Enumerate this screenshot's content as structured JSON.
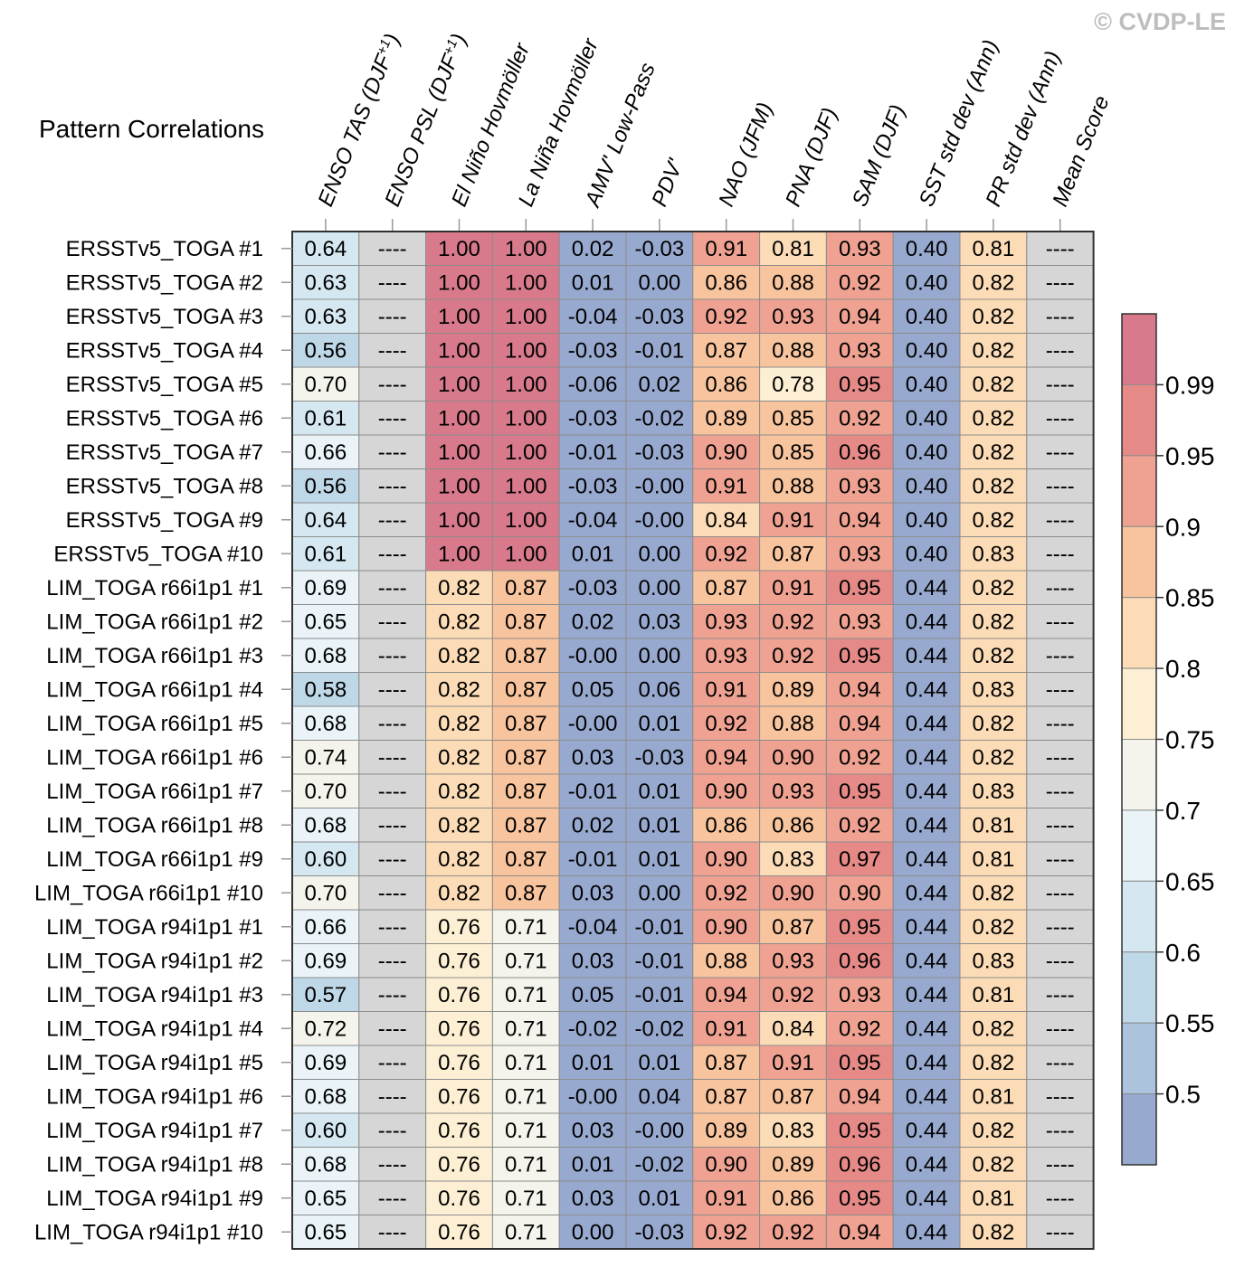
{
  "watermark": "© CVDP-LE",
  "chart_data": {
    "type": "heatmap",
    "title": "Pattern Correlations",
    "columns": [
      {
        "label": "ENSO TAS (DJF",
        "sup": "+1",
        "suffix": ")"
      },
      {
        "label": "ENSO PSL (DJF",
        "sup": "+1",
        "suffix": ")"
      },
      {
        "label": "El Niño Hovmöller",
        "sup": "",
        "suffix": ""
      },
      {
        "label": "La Niña Hovmöller",
        "sup": "",
        "suffix": ""
      },
      {
        "label": "AMV' Low-Pass",
        "sup": "",
        "suffix": ""
      },
      {
        "label": "PDV'",
        "sup": "",
        "suffix": ""
      },
      {
        "label": "NAO (JFM)",
        "sup": "",
        "suffix": ""
      },
      {
        "label": "PNA (DJF)",
        "sup": "",
        "suffix": ""
      },
      {
        "label": "SAM (DJF)",
        "sup": "",
        "suffix": ""
      },
      {
        "label": "SST std dev (Ann)",
        "sup": "",
        "suffix": ""
      },
      {
        "label": "PR std dev (Ann)",
        "sup": "",
        "suffix": ""
      },
      {
        "label": "Mean Score",
        "sup": "",
        "suffix": ""
      }
    ],
    "rows": [
      {
        "name": "ERSSTv5_TOGA #1",
        "values": [
          "0.64",
          "----",
          "1.00",
          "1.00",
          "0.02",
          "-0.03",
          "0.91",
          "0.81",
          "0.93",
          "0.40",
          "0.81",
          "----"
        ]
      },
      {
        "name": "ERSSTv5_TOGA #2",
        "values": [
          "0.63",
          "----",
          "1.00",
          "1.00",
          "0.01",
          "0.00",
          "0.86",
          "0.88",
          "0.92",
          "0.40",
          "0.82",
          "----"
        ]
      },
      {
        "name": "ERSSTv5_TOGA #3",
        "values": [
          "0.63",
          "----",
          "1.00",
          "1.00",
          "-0.04",
          "-0.03",
          "0.92",
          "0.93",
          "0.94",
          "0.40",
          "0.82",
          "----"
        ]
      },
      {
        "name": "ERSSTv5_TOGA #4",
        "values": [
          "0.56",
          "----",
          "1.00",
          "1.00",
          "-0.03",
          "-0.01",
          "0.87",
          "0.88",
          "0.93",
          "0.40",
          "0.82",
          "----"
        ]
      },
      {
        "name": "ERSSTv5_TOGA #5",
        "values": [
          "0.70",
          "----",
          "1.00",
          "1.00",
          "-0.06",
          "0.02",
          "0.86",
          "0.78",
          "0.95",
          "0.40",
          "0.82",
          "----"
        ]
      },
      {
        "name": "ERSSTv5_TOGA #6",
        "values": [
          "0.61",
          "----",
          "1.00",
          "1.00",
          "-0.03",
          "-0.02",
          "0.89",
          "0.85",
          "0.92",
          "0.40",
          "0.82",
          "----"
        ]
      },
      {
        "name": "ERSSTv5_TOGA #7",
        "values": [
          "0.66",
          "----",
          "1.00",
          "1.00",
          "-0.01",
          "-0.03",
          "0.90",
          "0.85",
          "0.96",
          "0.40",
          "0.82",
          "----"
        ]
      },
      {
        "name": "ERSSTv5_TOGA #8",
        "values": [
          "0.56",
          "----",
          "1.00",
          "1.00",
          "-0.03",
          "-0.00",
          "0.91",
          "0.88",
          "0.93",
          "0.40",
          "0.82",
          "----"
        ]
      },
      {
        "name": "ERSSTv5_TOGA #9",
        "values": [
          "0.64",
          "----",
          "1.00",
          "1.00",
          "-0.04",
          "-0.00",
          "0.84",
          "0.91",
          "0.94",
          "0.40",
          "0.82",
          "----"
        ]
      },
      {
        "name": "ERSSTv5_TOGA #10",
        "values": [
          "0.61",
          "----",
          "1.00",
          "1.00",
          "0.01",
          "0.00",
          "0.92",
          "0.87",
          "0.93",
          "0.40",
          "0.83",
          "----"
        ]
      },
      {
        "name": "LIM_TOGA r66i1p1 #1",
        "values": [
          "0.69",
          "----",
          "0.82",
          "0.87",
          "-0.03",
          "0.00",
          "0.87",
          "0.91",
          "0.95",
          "0.44",
          "0.82",
          "----"
        ]
      },
      {
        "name": "LIM_TOGA r66i1p1 #2",
        "values": [
          "0.65",
          "----",
          "0.82",
          "0.87",
          "0.02",
          "0.03",
          "0.93",
          "0.92",
          "0.93",
          "0.44",
          "0.82",
          "----"
        ]
      },
      {
        "name": "LIM_TOGA r66i1p1 #3",
        "values": [
          "0.68",
          "----",
          "0.82",
          "0.87",
          "-0.00",
          "0.00",
          "0.93",
          "0.92",
          "0.95",
          "0.44",
          "0.82",
          "----"
        ]
      },
      {
        "name": "LIM_TOGA r66i1p1 #4",
        "values": [
          "0.58",
          "----",
          "0.82",
          "0.87",
          "0.05",
          "0.06",
          "0.91",
          "0.89",
          "0.94",
          "0.44",
          "0.83",
          "----"
        ]
      },
      {
        "name": "LIM_TOGA r66i1p1 #5",
        "values": [
          "0.68",
          "----",
          "0.82",
          "0.87",
          "-0.00",
          "0.01",
          "0.92",
          "0.88",
          "0.94",
          "0.44",
          "0.82",
          "----"
        ]
      },
      {
        "name": "LIM_TOGA r66i1p1 #6",
        "values": [
          "0.74",
          "----",
          "0.82",
          "0.87",
          "0.03",
          "-0.03",
          "0.94",
          "0.90",
          "0.92",
          "0.44",
          "0.82",
          "----"
        ]
      },
      {
        "name": "LIM_TOGA r66i1p1 #7",
        "values": [
          "0.70",
          "----",
          "0.82",
          "0.87",
          "-0.01",
          "0.01",
          "0.90",
          "0.93",
          "0.95",
          "0.44",
          "0.83",
          "----"
        ]
      },
      {
        "name": "LIM_TOGA r66i1p1 #8",
        "values": [
          "0.68",
          "----",
          "0.82",
          "0.87",
          "0.02",
          "0.01",
          "0.86",
          "0.86",
          "0.92",
          "0.44",
          "0.81",
          "----"
        ]
      },
      {
        "name": "LIM_TOGA r66i1p1 #9",
        "values": [
          "0.60",
          "----",
          "0.82",
          "0.87",
          "-0.01",
          "0.01",
          "0.90",
          "0.83",
          "0.97",
          "0.44",
          "0.81",
          "----"
        ]
      },
      {
        "name": "LIM_TOGA r66i1p1 #10",
        "values": [
          "0.70",
          "----",
          "0.82",
          "0.87",
          "0.03",
          "0.00",
          "0.92",
          "0.90",
          "0.90",
          "0.44",
          "0.82",
          "----"
        ]
      },
      {
        "name": "LIM_TOGA r94i1p1 #1",
        "values": [
          "0.66",
          "----",
          "0.76",
          "0.71",
          "-0.04",
          "-0.01",
          "0.90",
          "0.87",
          "0.95",
          "0.44",
          "0.82",
          "----"
        ]
      },
      {
        "name": "LIM_TOGA r94i1p1 #2",
        "values": [
          "0.69",
          "----",
          "0.76",
          "0.71",
          "0.03",
          "-0.01",
          "0.88",
          "0.93",
          "0.96",
          "0.44",
          "0.83",
          "----"
        ]
      },
      {
        "name": "LIM_TOGA r94i1p1 #3",
        "values": [
          "0.57",
          "----",
          "0.76",
          "0.71",
          "0.05",
          "-0.01",
          "0.94",
          "0.92",
          "0.93",
          "0.44",
          "0.81",
          "----"
        ]
      },
      {
        "name": "LIM_TOGA r94i1p1 #4",
        "values": [
          "0.72",
          "----",
          "0.76",
          "0.71",
          "-0.02",
          "-0.02",
          "0.91",
          "0.84",
          "0.92",
          "0.44",
          "0.82",
          "----"
        ]
      },
      {
        "name": "LIM_TOGA r94i1p1 #5",
        "values": [
          "0.69",
          "----",
          "0.76",
          "0.71",
          "0.01",
          "0.01",
          "0.87",
          "0.91",
          "0.95",
          "0.44",
          "0.82",
          "----"
        ]
      },
      {
        "name": "LIM_TOGA r94i1p1 #6",
        "values": [
          "0.68",
          "----",
          "0.76",
          "0.71",
          "-0.00",
          "0.04",
          "0.87",
          "0.87",
          "0.94",
          "0.44",
          "0.81",
          "----"
        ]
      },
      {
        "name": "LIM_TOGA r94i1p1 #7",
        "values": [
          "0.60",
          "----",
          "0.76",
          "0.71",
          "0.03",
          "-0.00",
          "0.89",
          "0.83",
          "0.95",
          "0.44",
          "0.82",
          "----"
        ]
      },
      {
        "name": "LIM_TOGA r94i1p1 #8",
        "values": [
          "0.68",
          "----",
          "0.76",
          "0.71",
          "0.01",
          "-0.02",
          "0.90",
          "0.89",
          "0.96",
          "0.44",
          "0.82",
          "----"
        ]
      },
      {
        "name": "LIM_TOGA r94i1p1 #9",
        "values": [
          "0.65",
          "----",
          "0.76",
          "0.71",
          "0.03",
          "0.01",
          "0.91",
          "0.86",
          "0.95",
          "0.44",
          "0.81",
          "----"
        ]
      },
      {
        "name": "LIM_TOGA r94i1p1 #10",
        "values": [
          "0.65",
          "----",
          "0.76",
          "0.71",
          "0.00",
          "-0.03",
          "0.92",
          "0.92",
          "0.94",
          "0.44",
          "0.82",
          "----"
        ]
      }
    ],
    "colorbar": {
      "ticks": [
        "0.99",
        "0.95",
        "0.9",
        "0.85",
        "0.8",
        "0.75",
        "0.7",
        "0.65",
        "0.6",
        "0.55",
        "0.5"
      ],
      "thresholds": [
        0.5,
        0.55,
        0.6,
        0.65,
        0.7,
        0.75,
        0.8,
        0.85,
        0.9,
        0.95,
        0.99
      ],
      "colors": [
        "#98a9cf",
        "#abc3dc",
        "#bfd8e8",
        "#d5e8f2",
        "#e9f3f8",
        "#f4f4ec",
        "#fcefd3",
        "#fbdcb6",
        "#f7c49e",
        "#efa292",
        "#e68a88",
        "#d87a8b"
      ],
      "missing_color": "#d6d6d6",
      "grid_color": "#8c8c8c",
      "border_color": "#303030"
    }
  }
}
